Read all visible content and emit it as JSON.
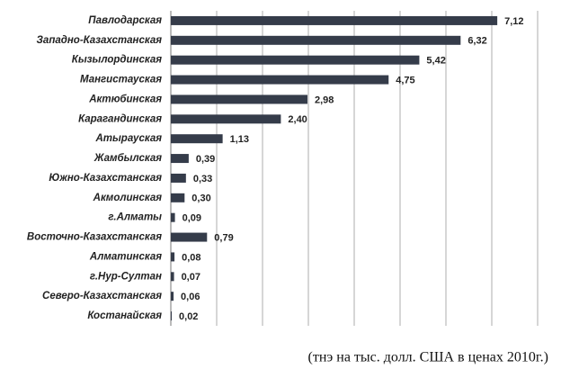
{
  "chart_data": {
    "type": "bar",
    "orientation": "horizontal",
    "categories": [
      "Павлодарская",
      "Западно-Казахстанская",
      "Кызылординская",
      "Мангистауская",
      "Актюбинская",
      "Карагандинская",
      "Атырауская",
      "Жамбылская",
      "Южно-Казахстанская",
      "Акмолинская",
      "г.Алматы",
      "Восточно-Казахстанская",
      "Алматинская",
      "г.Нур-Султан",
      "Северо-Казахстанская",
      "Костанайская"
    ],
    "values": [
      7.12,
      6.32,
      5.42,
      4.75,
      2.98,
      2.4,
      1.13,
      0.39,
      0.33,
      0.3,
      0.09,
      0.79,
      0.08,
      0.07,
      0.06,
      0.02
    ],
    "value_labels": [
      "7,12",
      "6,32",
      "5,42",
      "4,75",
      "2,98",
      "2,40",
      "1,13",
      "0,39",
      "0,33",
      "0,30",
      "0,09",
      "0,79",
      "0,08",
      "0,07",
      "0,06",
      "0,02"
    ],
    "color": "#353c4a",
    "xlim": [
      0,
      8
    ],
    "xticks": [
      0,
      1,
      2,
      3,
      4,
      5,
      6,
      7,
      8
    ],
    "grid": true,
    "caption": "(тнэ на тыс. долл. США в ценах 2010г.)"
  }
}
